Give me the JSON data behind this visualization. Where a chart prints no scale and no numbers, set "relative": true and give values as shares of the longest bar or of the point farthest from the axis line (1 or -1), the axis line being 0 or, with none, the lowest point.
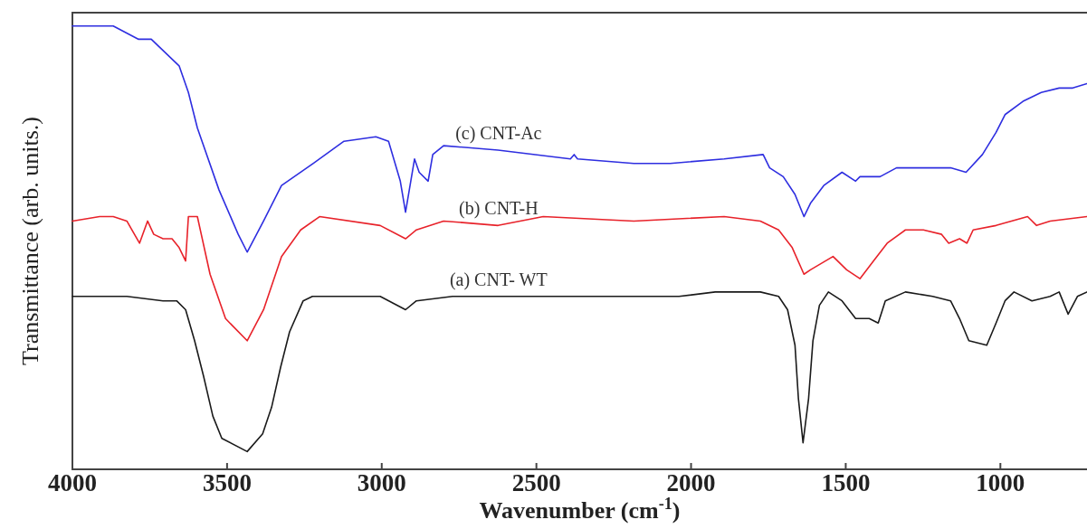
{
  "chart_data": {
    "type": "line",
    "xlabel": "Wavenumber (cm$^{-1}$)",
    "ylabel": "Transmittance (arb. units.)",
    "xlim": [
      4000,
      720
    ],
    "xticks": [
      4000,
      3500,
      3000,
      2500,
      2000,
      1500,
      1000
    ],
    "relative": true,
    "tick_labels": "x",
    "grid": false,
    "marker": "none",
    "line_style": "solid",
    "series": [
      {
        "name": "(a) CNT- WT",
        "color": "#1a1a1a",
        "x": [
          4000,
          3824,
          3707,
          3663,
          3634,
          3605,
          3576,
          3546,
          3517,
          3435,
          3385,
          3356,
          3327,
          3298,
          3254,
          3224,
          3151,
          3005,
          2923,
          2888,
          2771,
          2478,
          2185,
          2039,
          1922,
          1776,
          1717,
          1688,
          1664,
          1653,
          1638,
          1620,
          1606,
          1585,
          1556,
          1512,
          1468,
          1424,
          1395,
          1372,
          1307,
          1219,
          1161,
          1132,
          1102,
          1044,
          1014,
          985,
          956,
          898,
          839,
          810,
          781,
          751,
          720
        ],
        "values": [
          0.39,
          0.39,
          0.38,
          0.38,
          0.36,
          0.29,
          0.21,
          0.12,
          0.07,
          0.04,
          0.08,
          0.14,
          0.23,
          0.31,
          0.38,
          0.39,
          0.39,
          0.39,
          0.36,
          0.38,
          0.39,
          0.39,
          0.39,
          0.39,
          0.4,
          0.4,
          0.39,
          0.36,
          0.28,
          0.16,
          0.06,
          0.16,
          0.29,
          0.37,
          0.4,
          0.38,
          0.34,
          0.34,
          0.33,
          0.38,
          0.4,
          0.39,
          0.38,
          0.34,
          0.29,
          0.28,
          0.33,
          0.38,
          0.4,
          0.38,
          0.39,
          0.4,
          0.35,
          0.39,
          0.4
        ]
      },
      {
        "name": "(b) CNT-H",
        "color": "#e8222a",
        "x": [
          4000,
          3912,
          3868,
          3824,
          3783,
          3757,
          3737,
          3707,
          3678,
          3655,
          3634,
          3625,
          3596,
          3555,
          3505,
          3435,
          3382,
          3324,
          3262,
          3201,
          3005,
          2923,
          2888,
          2800,
          2624,
          2478,
          2185,
          1893,
          1776,
          1717,
          1673,
          1635,
          1614,
          1541,
          1497,
          1454,
          1410,
          1366,
          1307,
          1249,
          1190,
          1167,
          1132,
          1108,
          1088,
          1014,
          912,
          883,
          839,
          720
        ],
        "values": [
          0.56,
          0.57,
          0.57,
          0.56,
          0.51,
          0.56,
          0.53,
          0.52,
          0.52,
          0.5,
          0.47,
          0.57,
          0.57,
          0.44,
          0.34,
          0.29,
          0.36,
          0.48,
          0.54,
          0.57,
          0.55,
          0.52,
          0.54,
          0.56,
          0.55,
          0.57,
          0.56,
          0.57,
          0.56,
          0.54,
          0.5,
          0.44,
          0.45,
          0.48,
          0.45,
          0.43,
          0.47,
          0.51,
          0.54,
          0.54,
          0.53,
          0.51,
          0.52,
          0.51,
          0.54,
          0.55,
          0.57,
          0.55,
          0.56,
          0.57
        ]
      },
      {
        "name": "(c) CNT-Ac",
        "color": "#2e2ee0",
        "x": [
          4000,
          3868,
          3786,
          3745,
          3655,
          3625,
          3596,
          3526,
          3464,
          3435,
          3382,
          3324,
          3221,
          3122,
          3019,
          2978,
          2940,
          2923,
          2894,
          2879,
          2850,
          2835,
          2800,
          2624,
          2390,
          2378,
          2367,
          2185,
          2068,
          1893,
          1767,
          1746,
          1702,
          1664,
          1635,
          1614,
          1571,
          1512,
          1468,
          1454,
          1389,
          1336,
          1249,
          1161,
          1111,
          1058,
          1014,
          985,
          927,
          868,
          810,
          766,
          720
        ],
        "values": [
          1.0,
          1.0,
          0.97,
          0.97,
          0.91,
          0.85,
          0.77,
          0.63,
          0.53,
          0.49,
          0.56,
          0.64,
          0.69,
          0.74,
          0.75,
          0.74,
          0.65,
          0.58,
          0.7,
          0.67,
          0.65,
          0.71,
          0.73,
          0.72,
          0.7,
          0.71,
          0.7,
          0.69,
          0.69,
          0.7,
          0.71,
          0.68,
          0.66,
          0.62,
          0.57,
          0.6,
          0.64,
          0.67,
          0.65,
          0.66,
          0.66,
          0.68,
          0.68,
          0.68,
          0.67,
          0.71,
          0.76,
          0.8,
          0.83,
          0.85,
          0.86,
          0.86,
          0.87
        ]
      }
    ]
  }
}
